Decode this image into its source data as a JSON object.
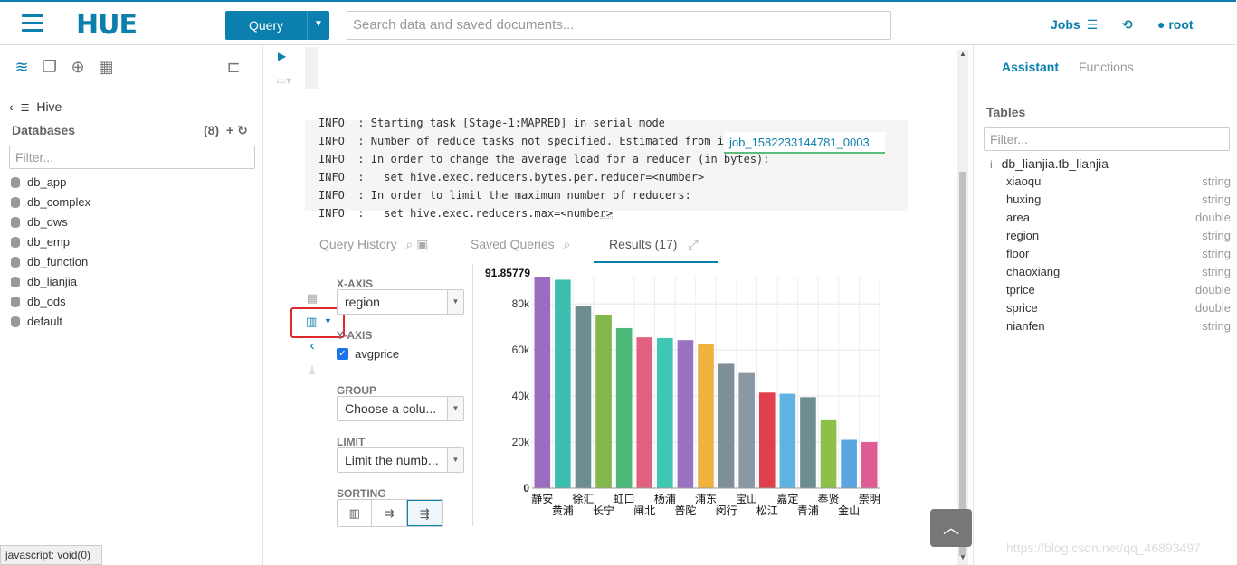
{
  "header": {
    "logo": "HUE",
    "query_label": "Query",
    "search_placeholder": "Search data and saved documents...",
    "jobs_label": "Jobs",
    "user_label": "root"
  },
  "left": {
    "source": "Hive",
    "databases_label": "Databases",
    "databases_count": "(8)",
    "filter_placeholder": "Filter...",
    "databases": [
      "db_app",
      "db_complex",
      "db_dws",
      "db_emp",
      "db_function",
      "db_lianjia",
      "db_ods",
      "default"
    ]
  },
  "status_tip": "javascript: void(0)",
  "log": {
    "lines": [
      "INFO  : Starting task [Stage-1:MAPRED] in serial mode",
      "INFO  : Number of reduce tasks not specified. Estimated from i",
      "INFO  : In order to change the average load for a reducer (in bytes):",
      "INFO  :   set hive.exec.reducers.bytes.per.reducer=<number>",
      "INFO  : In order to limit the maximum number of reducers:",
      "INFO  :   set hive.exec.reducers.max=<number>"
    ],
    "job_link": "job_1582233144781_0003"
  },
  "tabs": {
    "history": "Query History",
    "saved": "Saved Queries",
    "results": "Results (17)"
  },
  "config": {
    "xaxis_label": "X-AXIS",
    "xaxis_value": "region",
    "yaxis_label": "Y-AXIS",
    "yaxis_field": "avgprice",
    "group_label": "GROUP",
    "group_value": "Choose a colu...",
    "limit_label": "LIMIT",
    "limit_value": "Limit the numb...",
    "sorting_label": "SORTING"
  },
  "chart_data": {
    "type": "bar",
    "categories": [
      "静安",
      "黄浦",
      "徐汇",
      "长宁",
      "虹口",
      "闸北",
      "杨浦",
      "普陀",
      "浦东",
      "闵行",
      "宝山",
      "松江",
      "嘉定",
      "青浦",
      "奉贤",
      "金山",
      "崇明"
    ],
    "values": [
      91857.79,
      90500,
      79000,
      75000,
      69500,
      65500,
      65200,
      64300,
      62500,
      54000,
      50000,
      41500,
      41000,
      39500,
      29500,
      21000,
      20000
    ],
    "colors": [
      "#9a6dc0",
      "#3bbdb0",
      "#6d8e90",
      "#82b74b",
      "#4bb87a",
      "#e0607e",
      "#3ec7b5",
      "#9a72c2",
      "#efb23f",
      "#7f8f9a",
      "#8a97a4",
      "#e0404e",
      "#5fb3e0",
      "#6d8e90",
      "#8cc04a",
      "#5aa6e0",
      "#e05a94"
    ],
    "ymax_label": "91.85779",
    "yticks": [
      "0",
      "20k",
      "40k",
      "60k",
      "80k"
    ],
    "ylim": [
      0,
      91857.79
    ]
  },
  "right": {
    "tab_assistant": "Assistant",
    "tab_functions": "Functions",
    "tables_label": "Tables",
    "filter_placeholder": "Filter...",
    "table_name": "db_lianjia.tb_lianjia",
    "columns": [
      {
        "name": "xiaoqu",
        "type": "string"
      },
      {
        "name": "huxing",
        "type": "string"
      },
      {
        "name": "area",
        "type": "double"
      },
      {
        "name": "region",
        "type": "string"
      },
      {
        "name": "floor",
        "type": "string"
      },
      {
        "name": "chaoxiang",
        "type": "string"
      },
      {
        "name": "tprice",
        "type": "double"
      },
      {
        "name": "sprice",
        "type": "double"
      },
      {
        "name": "nianfen",
        "type": "string"
      }
    ]
  },
  "watermark": "https://blog.csdn.net/qq_46893497"
}
